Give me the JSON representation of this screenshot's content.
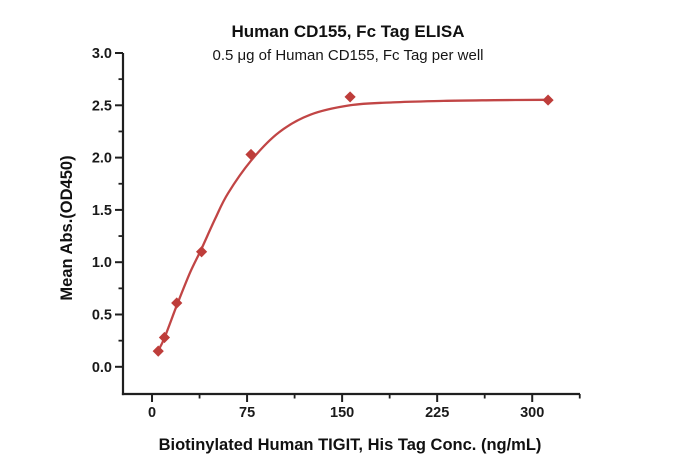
{
  "page": {
    "background": "#ffffff"
  },
  "chart_data": {
    "type": "scatter",
    "title": "Human CD155, Fc Tag ELISA",
    "subtitle": "0.5 μg of Human CD155, Fc Tag per well",
    "xlabel": "Biotinylated Human TIGIT, His Tag Conc. (ng/mL)",
    "ylabel": "Mean Abs.(OD450)",
    "series": [
      {
        "name": "Biotinylated Human TIGIT, His Tag",
        "marker": "diamond",
        "color": "#BE3D3A",
        "x": [
          4.9,
          9.8,
          19.5,
          39.1,
          78.1,
          156.3,
          312.5
        ],
        "y": [
          0.15,
          0.28,
          0.61,
          1.1,
          2.03,
          2.58,
          2.55
        ]
      }
    ],
    "fit_curve": {
      "model": "4PL sigmoidal fit",
      "color": "#C14545",
      "x": [
        4.9,
        9.8,
        19.5,
        30,
        39.1,
        50,
        60,
        78.1,
        100,
        125,
        156.3,
        190,
        230,
        270,
        312.5
      ],
      "y": [
        0.155,
        0.275,
        0.585,
        0.9,
        1.13,
        1.42,
        1.66,
        1.97,
        2.24,
        2.41,
        2.5,
        2.528,
        2.542,
        2.549,
        2.553
      ]
    },
    "axes": {
      "xlim": [
        -22.9,
        337.7
      ],
      "ylim": [
        -0.26,
        3.0
      ],
      "x_major_ticks": [
        0,
        75,
        150,
        225,
        300
      ],
      "x_tick_labels": [
        "0",
        "75",
        "150",
        "225",
        "300"
      ],
      "x_minor_ticks": [
        37.5,
        112.5,
        187.5,
        262.5,
        337.5
      ],
      "y_major_ticks": [
        0.0,
        0.5,
        1.0,
        1.5,
        2.0,
        2.5,
        3.0
      ],
      "y_tick_labels": [
        "0.0",
        "0.5",
        "1.0",
        "1.5",
        "2.0",
        "2.5",
        "3.0"
      ],
      "y_minor_ticks": [
        0.25,
        0.75,
        1.25,
        1.75,
        2.25,
        2.75
      ],
      "grid": false,
      "tick_direction": "out",
      "axis_color": "#1f1f1f"
    },
    "legend": null
  }
}
